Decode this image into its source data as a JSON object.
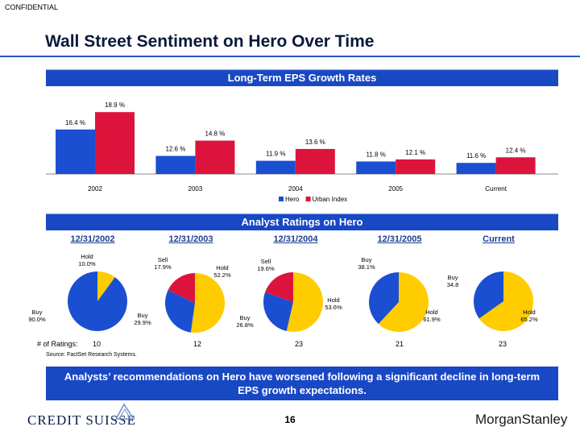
{
  "header": {
    "confidential": "CONFIDENTIAL",
    "title": "Wall Street Sentiment on Hero Over Time"
  },
  "section1": {
    "title": "Long-Term EPS Growth Rates"
  },
  "section2": {
    "title": "Analyst Ratings on Hero"
  },
  "chart_data": [
    {
      "type": "bar",
      "title": "Long-Term EPS Growth Rates",
      "categories": [
        "2002",
        "2003",
        "2004",
        "2005",
        "Current"
      ],
      "series": [
        {
          "name": "Hero",
          "values": [
            16.4,
            12.6,
            11.9,
            11.8,
            11.6
          ],
          "labels": [
            "16.4 %",
            "12.6 %",
            "11.9 %",
            "11.8 %",
            "11.6 %"
          ],
          "color": "#1b4fd1"
        },
        {
          "name": "Urban Index",
          "values": [
            18.9,
            14.8,
            13.6,
            12.1,
            12.4
          ],
          "labels": [
            "18.9 %",
            "14.8 %",
            "13.6 %",
            "12.1 %",
            "12.4 %"
          ],
          "color": "#dc143c"
        }
      ],
      "ylim": [
        10,
        19.5
      ],
      "legend": "bottom",
      "grid": false
    },
    {
      "type": "pie",
      "title": "12/31/2002",
      "slices": [
        {
          "name": "Hold",
          "value": 10.0,
          "label": "Hold\n10.0%",
          "color": "#ffcc00"
        },
        {
          "name": "Buy",
          "value": 90.0,
          "label": "Buy\n90.0%",
          "color": "#1b4fd1"
        }
      ],
      "ratings": "10"
    },
    {
      "type": "pie",
      "title": "12/31/2003",
      "slices": [
        {
          "name": "Hold",
          "value": 52.2,
          "label": "Hold\n52.2%",
          "color": "#ffcc00"
        },
        {
          "name": "Buy",
          "value": 29.9,
          "label": "Buy\n29.9%",
          "color": "#1b4fd1"
        },
        {
          "name": "Sell",
          "value": 17.9,
          "label": "Sell\n17.9%",
          "color": "#dc143c"
        }
      ],
      "ratings": "12"
    },
    {
      "type": "pie",
      "title": "12/31/2004",
      "slices": [
        {
          "name": "Hold",
          "value": 53.6,
          "label": "Hold\n53.6%",
          "color": "#ffcc00"
        },
        {
          "name": "Buy",
          "value": 26.8,
          "label": "Buy\n26.8%",
          "color": "#1b4fd1"
        },
        {
          "name": "Sell",
          "value": 19.6,
          "label": "Sell\n19.6%",
          "color": "#dc143c"
        }
      ],
      "ratings": "23"
    },
    {
      "type": "pie",
      "title": "12/31/2005",
      "slices": [
        {
          "name": "Hold",
          "value": 61.9,
          "label": "Hold\n61.9%",
          "color": "#ffcc00"
        },
        {
          "name": "Buy",
          "value": 38.1,
          "label": "Buy\n38.1%",
          "color": "#1b4fd1"
        }
      ],
      "ratings": "21"
    },
    {
      "type": "pie",
      "title": "Current",
      "slices": [
        {
          "name": "Hold",
          "value": 65.2,
          "label": "Hold\n65.2%",
          "color": "#ffcc00"
        },
        {
          "name": "Buy",
          "value": 34.8,
          "label": "Buy\n34.8",
          "color": "#1b4fd1"
        }
      ],
      "ratings": "23"
    }
  ],
  "ratings_label": "# of Ratings:",
  "source": "Source: FactSet Research Systems.",
  "callout": "Analysts’ recommendations on Hero have worsened following a significant decline in long-term EPS growth expectations.",
  "footer": {
    "page_number": "16",
    "left_logo": "CREDIT SUISSE",
    "right_logo": "MorganStanley"
  }
}
